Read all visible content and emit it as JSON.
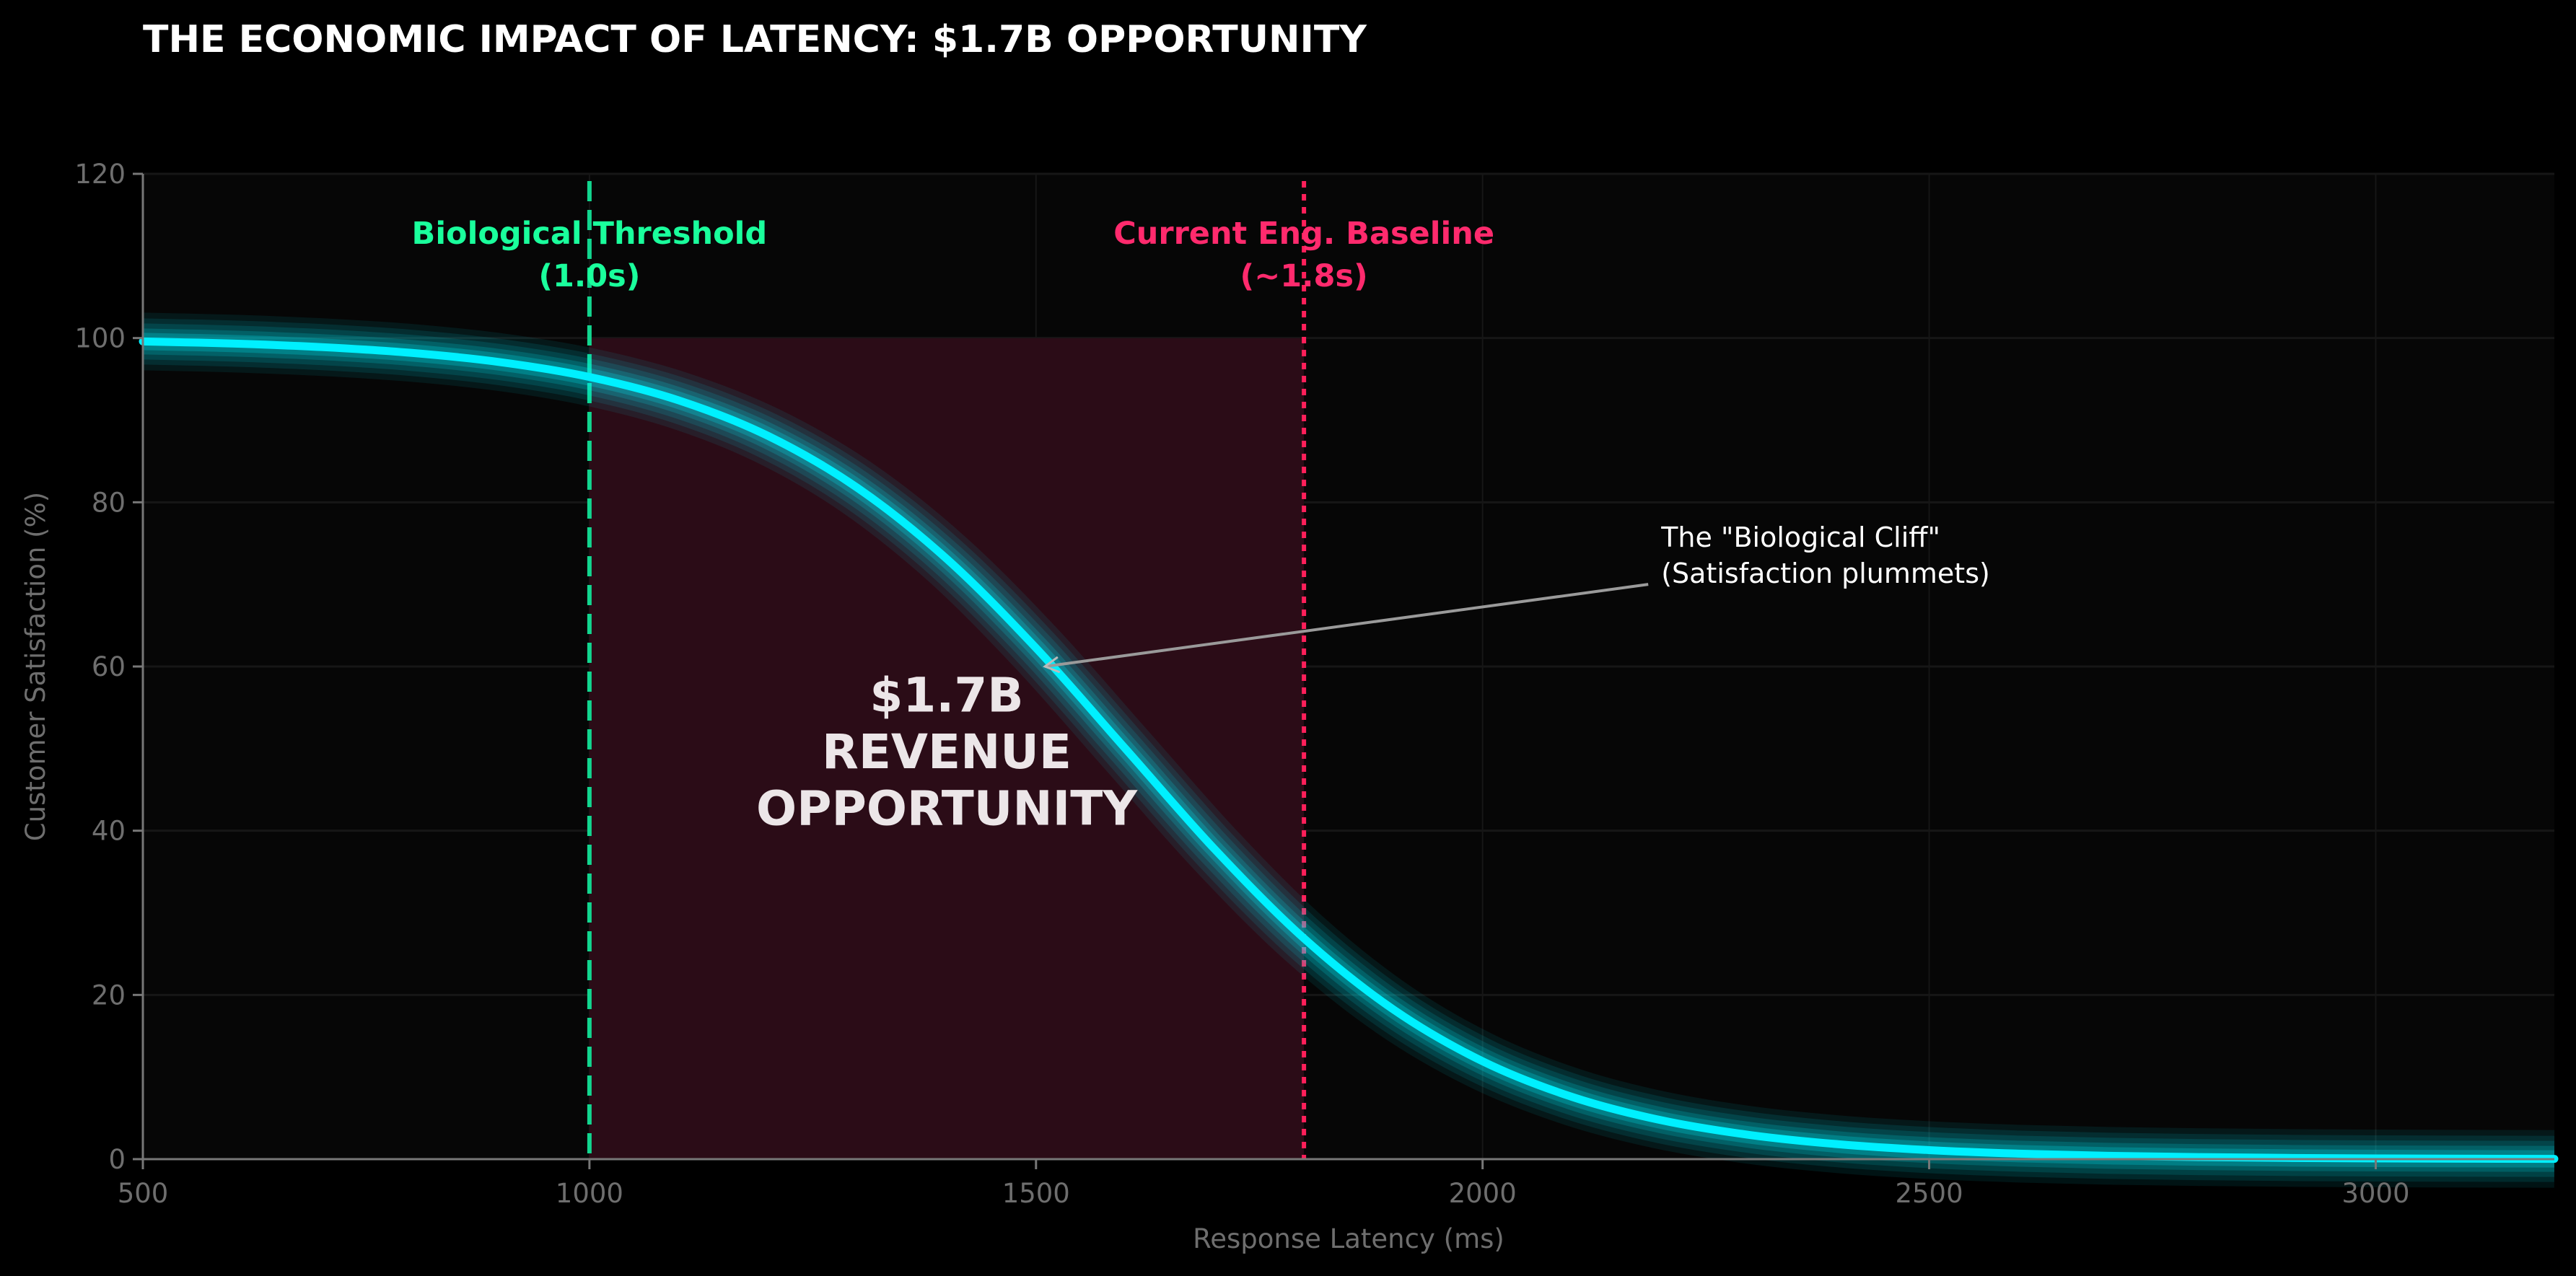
{
  "chart_data": {
    "type": "line",
    "title": "THE ECONOMIC IMPACT OF LATENCY: $1.7B OPPORTUNITY",
    "xlabel": "Response Latency (ms)",
    "ylabel": "Customer Satisfaction (%)",
    "xlim": [
      500,
      3200
    ],
    "ylim": [
      0,
      120
    ],
    "xticks": [
      500,
      1000,
      1500,
      2000,
      2500,
      3000
    ],
    "yticks": [
      0,
      20,
      40,
      60,
      80,
      100,
      120
    ],
    "grid": true,
    "series": [
      {
        "color": "#00f0ff",
        "x": [
          500,
          600,
          700,
          800,
          900,
          1000,
          1100,
          1200,
          1300,
          1400,
          1500,
          1600,
          1700,
          1800,
          1900,
          2000,
          2100,
          2200,
          2300,
          2400,
          2500,
          2600,
          2700,
          2800,
          2900,
          3000,
          3100,
          3200
        ],
        "y": [
          99.59,
          99.33,
          98.9,
          98.2,
          97.07,
          95.26,
          92.41,
          88.08,
          81.76,
          73.11,
          62.25,
          50.0,
          37.75,
          26.89,
          18.24,
          11.92,
          7.59,
          4.74,
          2.93,
          1.8,
          1.1,
          0.67,
          0.41,
          0.25,
          0.15,
          0.09,
          0.06,
          0.03
        ]
      }
    ],
    "shaded_region": {
      "x": [
        1000,
        1800
      ],
      "y": [
        0,
        100
      ],
      "color": "#2b0c17"
    },
    "vlines": [
      {
        "x": 1000,
        "style": "dashed",
        "color": "#12d68f",
        "label_color": "#1aff9c",
        "label": [
          "Biological Threshold",
          "(1.0s)"
        ]
      },
      {
        "x": 1800,
        "style": "dotted",
        "color": "#ff1f5a",
        "label_color": "#ff2a6d",
        "label": [
          "Current Eng. Baseline",
          "(~1.8s)"
        ]
      }
    ],
    "region_label": [
      "$1.7B",
      "REVENUE",
      "OPPORTUNITY"
    ],
    "annotation": {
      "text": [
        "The \"Biological Cliff\"",
        "(Satisfaction plummets)"
      ],
      "text_at": [
        2200,
        70
      ],
      "arrow_to": [
        1510,
        60
      ]
    }
  }
}
